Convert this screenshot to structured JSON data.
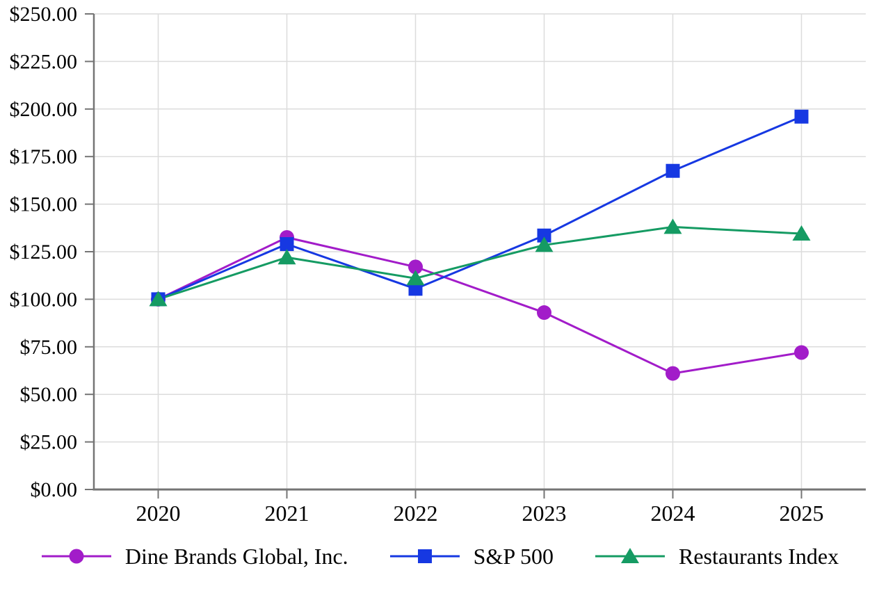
{
  "chart_data": {
    "type": "line",
    "title": "",
    "x_tick_labels": [
      "2020",
      "2021",
      "2022",
      "2023",
      "2024",
      "2025"
    ],
    "y_axis": {
      "tick_values": [
        0,
        25,
        50,
        75,
        100,
        125,
        150,
        175,
        200,
        225,
        250
      ],
      "tick_labels": [
        "$0.00",
        "$25.00",
        "$50.00",
        "$75.00",
        "$100.00",
        "$125.00",
        "$150.00",
        "$175.00",
        "$200.00",
        "$225.00",
        "$250.00"
      ]
    },
    "ylim": [
      0,
      250
    ],
    "grid": "both",
    "legend_position": "bottom",
    "series": [
      {
        "name": "Dine Brands Global, Inc.",
        "slug": "dine-brands-global-inc",
        "marker": "circle",
        "color": "#A21CC9",
        "values": [
          100.0,
          132.5,
          117.0,
          93.0,
          61.0,
          72.0
        ]
      },
      {
        "name": "S&P 500",
        "slug": "sp-500",
        "marker": "square",
        "color": "#1638E2",
        "values": [
          100.0,
          129.0,
          105.5,
          133.5,
          167.5,
          196.0
        ]
      },
      {
        "name": "Restaurants Index",
        "slug": "restaurants-index",
        "marker": "triangle",
        "color": "#159B63",
        "values": [
          100.0,
          122.0,
          111.0,
          128.5,
          138.0,
          134.5
        ]
      }
    ]
  },
  "colors": {
    "background": "#FFFFFF",
    "grid": "#DCDCDC",
    "axis": "#757575",
    "text": "#000000"
  }
}
